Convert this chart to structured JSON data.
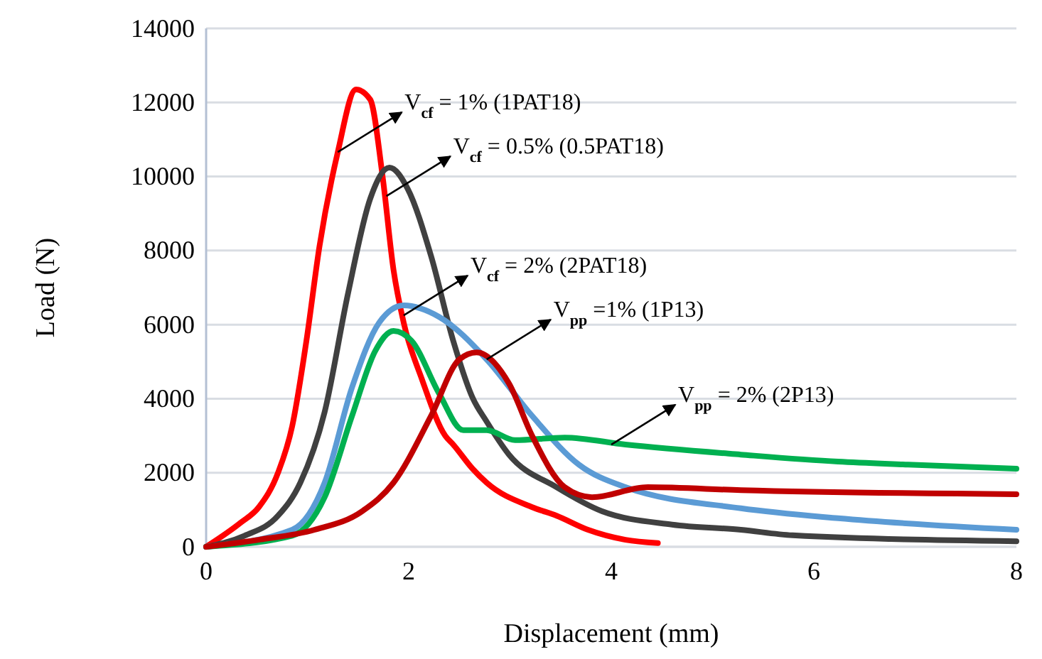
{
  "chart_data": {
    "type": "line",
    "xlabel": "Displacement (mm)",
    "ylabel": "Load (N)",
    "xlim": [
      0,
      8
    ],
    "ylim": [
      0,
      14000
    ],
    "xticks": [
      0,
      2,
      4,
      6,
      8
    ],
    "yticks": [
      0,
      2000,
      4000,
      6000,
      8000,
      10000,
      12000,
      14000
    ],
    "grid": "y",
    "marker": "none",
    "line_style": "solid",
    "series": [
      {
        "color": "#ff0000",
        "x": [
          0,
          0.34,
          0.52,
          0.71,
          0.85,
          0.99,
          1.12,
          1.3,
          1.48,
          1.62,
          1.74,
          1.85,
          1.95,
          2.13,
          2.36,
          2.44,
          2.63,
          2.77,
          3.22,
          3.46,
          3.77,
          4.14,
          4.46
        ],
        "values": [
          0,
          650,
          1070,
          2000,
          3260,
          5560,
          8130,
          10660,
          12350,
          12080,
          10050,
          7480,
          6060,
          4530,
          3000,
          2760,
          2110,
          1730,
          1070,
          840,
          460,
          190,
          100
        ]
      },
      {
        "color": "#404040",
        "x": [
          0,
          0.38,
          0.71,
          0.93,
          1.17,
          1.4,
          1.62,
          1.81,
          1.99,
          2.22,
          2.44,
          2.63,
          2.77,
          2.99,
          3.46,
          3.91,
          4.6,
          5.28,
          5.79,
          8
        ],
        "values": [
          0,
          300,
          840,
          1730,
          3640,
          6830,
          9400,
          10240,
          9670,
          7860,
          5560,
          4030,
          3380,
          2490,
          1610,
          960,
          600,
          460,
          310,
          150
        ]
      },
      {
        "color": "#5b9bd5",
        "x": [
          0,
          0.85,
          1.17,
          1.44,
          1.71,
          1.95,
          2.3,
          2.77,
          3.22,
          3.68,
          4.14,
          5.28,
          6.24,
          8
        ],
        "values": [
          0,
          460,
          1730,
          4300,
          6060,
          6520,
          6210,
          5060,
          3530,
          2220,
          1610,
          1040,
          770,
          460
        ]
      },
      {
        "color": "#00b050",
        "x": [
          0,
          0.85,
          1.17,
          1.44,
          1.67,
          1.85,
          2.03,
          2.3,
          2.54,
          2.77,
          3.05,
          3.54,
          4.14,
          5.28,
          6.24,
          6.93,
          8
        ],
        "values": [
          0,
          300,
          1340,
          3530,
          5290,
          5830,
          5560,
          4140,
          3150,
          3150,
          2880,
          2950,
          2760,
          2490,
          2300,
          2220,
          2110
        ]
      },
      {
        "color": "#c00000",
        "x": [
          0,
          0.52,
          1.07,
          1.54,
          1.85,
          2.22,
          2.5,
          2.67,
          2.99,
          3.22,
          3.54,
          3.81,
          4.36,
          5.28,
          8
        ],
        "values": [
          0,
          190,
          460,
          960,
          1730,
          3530,
          5060,
          5250,
          4410,
          2990,
          1610,
          1340,
          1610,
          1530,
          1420
        ]
      }
    ],
    "annotations": [
      {
        "text": "V$_{cf}$ = 1% (1PAT18)",
        "x": 1.3,
        "y": 10660
      },
      {
        "text": "V$_{cf}$ = 0.5% (0.5PAT18)",
        "x": 1.78,
        "y": 9470
      },
      {
        "text": "V$_{cf}$ = 2% (2PAT18)",
        "x": 1.95,
        "y": 6250
      },
      {
        "text": "V$_{pp}$ =1% (1P13)",
        "x": 2.77,
        "y": 5060
      },
      {
        "text": "V$_{pp}$ = 2% (2P13)",
        "x": 4.0,
        "y": 2760
      }
    ]
  }
}
